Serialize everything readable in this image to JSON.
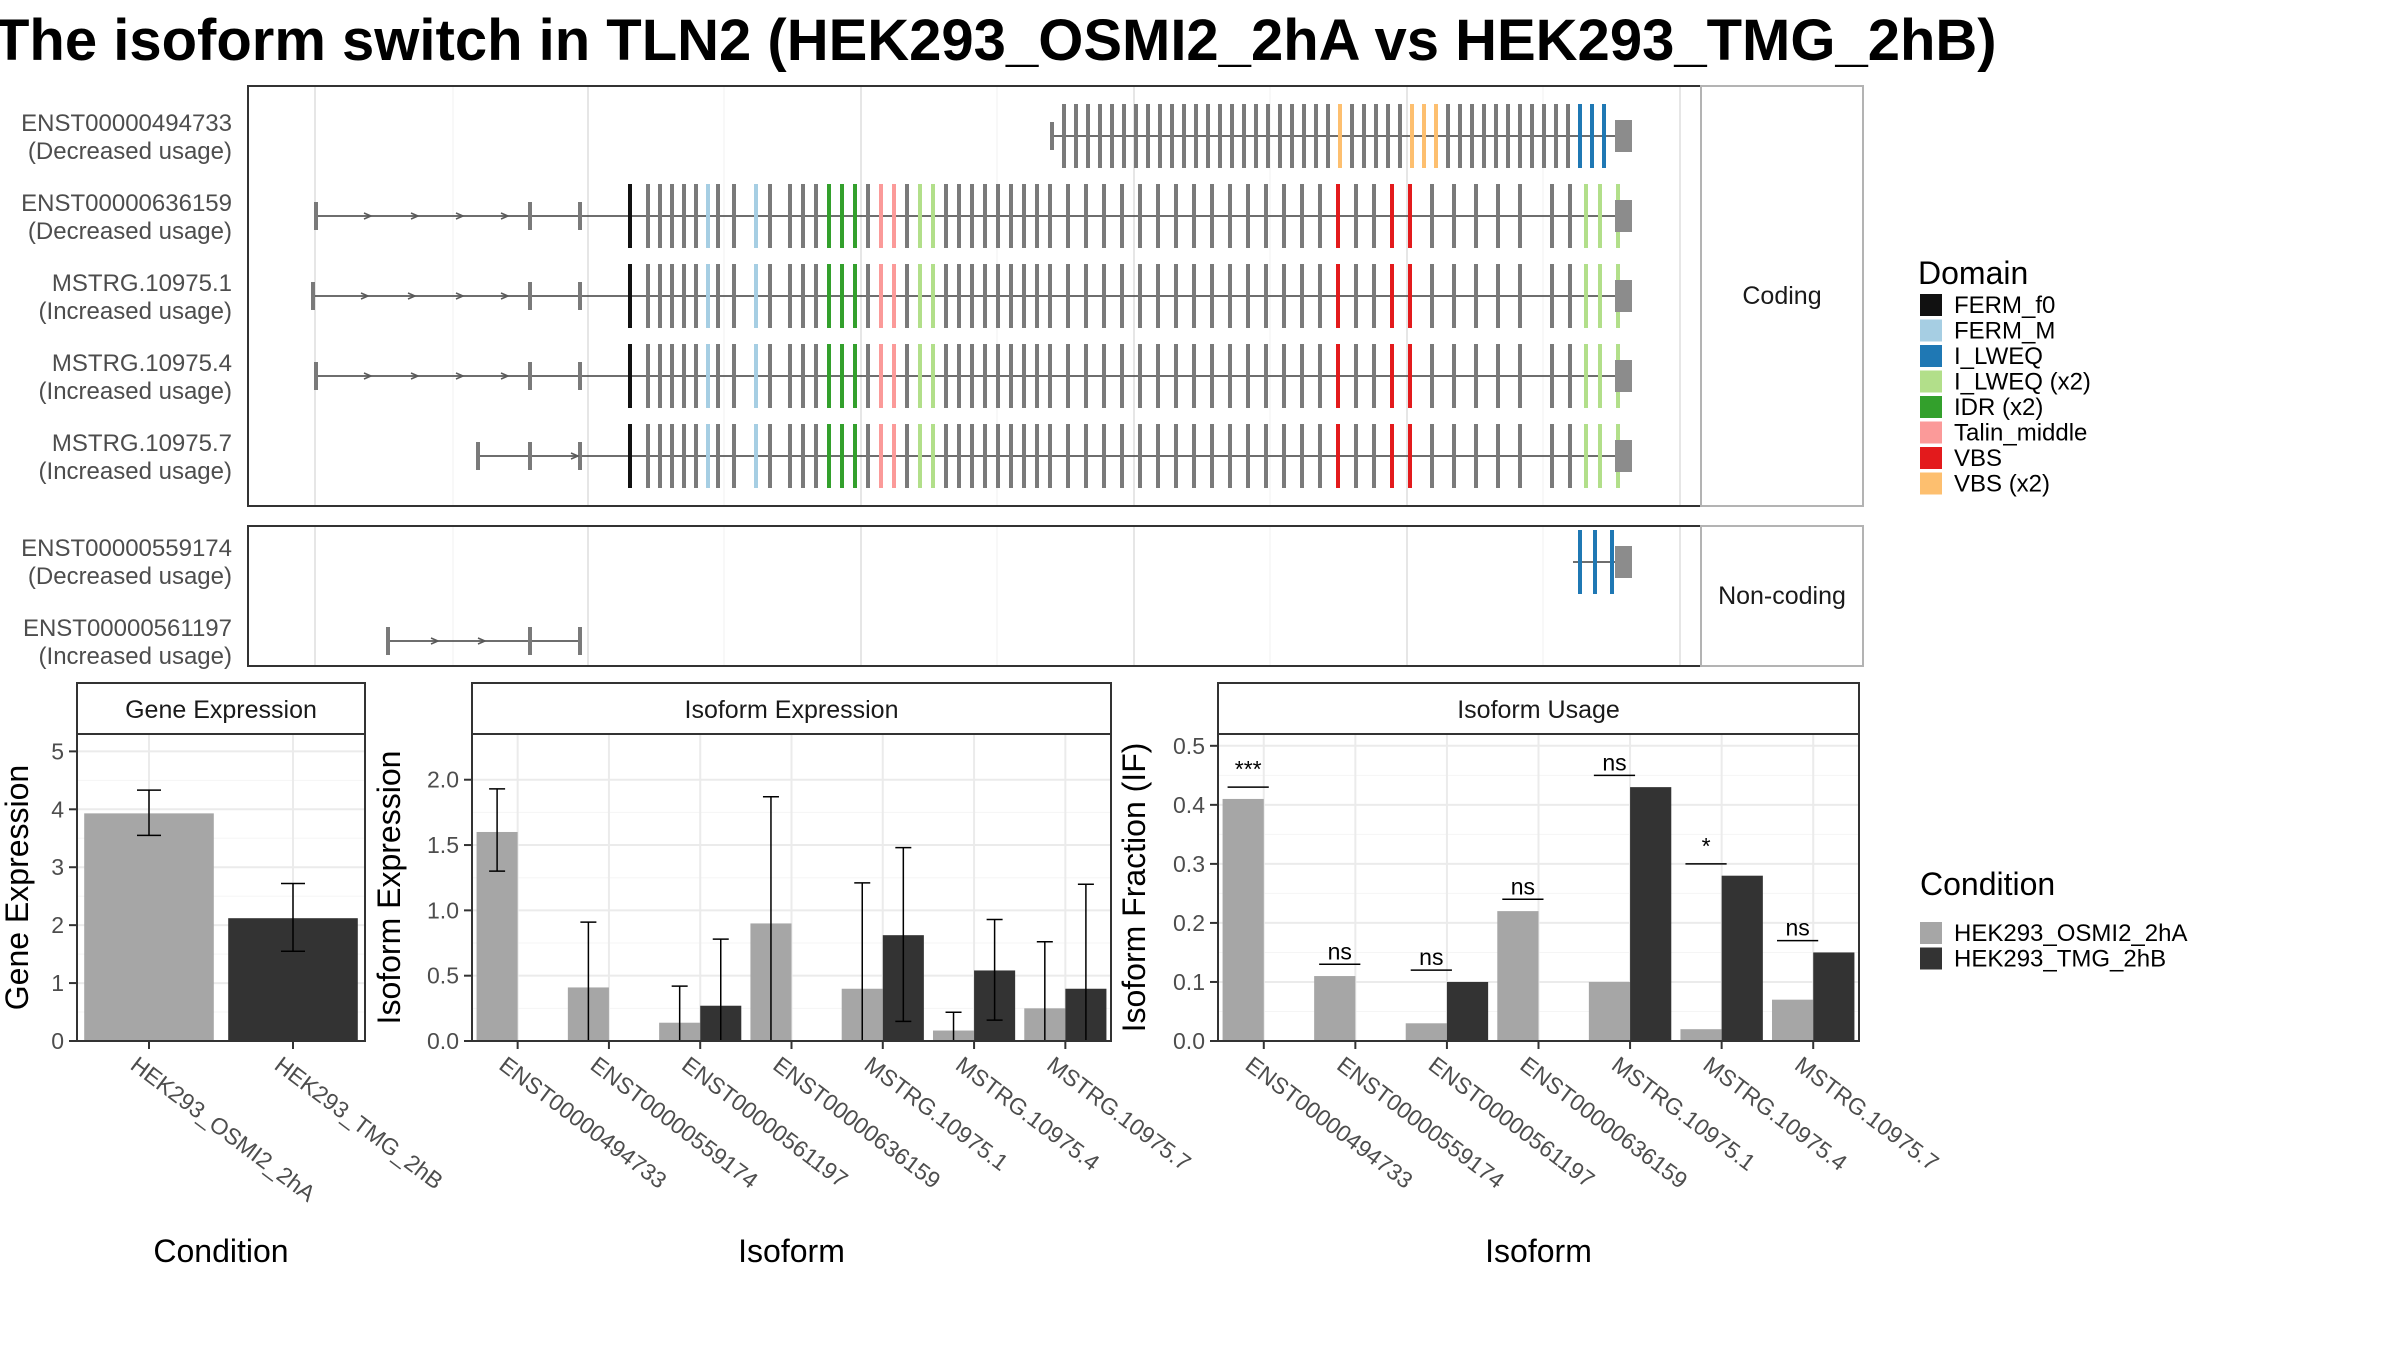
{
  "title": "The isoform switch in TLN2 (HEK293_OSMI2_2hA vs HEK293_TMG_2hB)",
  "colors": {
    "condition_a": "#a6a6a6",
    "condition_b": "#333333",
    "intron": "#595959",
    "exon_default": "#7a7a7a",
    "utr": "#8c8c8c",
    "panel_border": "#333333",
    "strip_fill": "#ffffff",
    "grid": "#ebebeb"
  },
  "domain_legend": {
    "title": "Domain",
    "items": [
      {
        "label": "FERM_f0",
        "color": "#111111"
      },
      {
        "label": "FERM_M",
        "color": "#a6cee3"
      },
      {
        "label": "I_LWEQ",
        "color": "#1f78b4"
      },
      {
        "label": "I_LWEQ (x2)",
        "color": "#b2df8a"
      },
      {
        "label": "IDR (x2)",
        "color": "#33a02c"
      },
      {
        "label": "Talin_middle",
        "color": "#fb9a99"
      },
      {
        "label": "VBS",
        "color": "#e31a1c"
      },
      {
        "label": "VBS (x2)",
        "color": "#fdbf6f"
      }
    ]
  },
  "condition_legend": {
    "title": "Condition",
    "items": [
      {
        "label": "HEK293_OSMI2_2hA",
        "color": "#a6a6a6"
      },
      {
        "label": "HEK293_TMG_2hB",
        "color": "#333333"
      }
    ]
  },
  "transcript_panels": [
    {
      "strip": "Coding",
      "transcripts": [
        {
          "id": "ENST00000494733",
          "usage": "(Decreased usage)"
        },
        {
          "id": "ENST00000636159",
          "usage": "(Decreased usage)"
        },
        {
          "id": "MSTRG.10975.1",
          "usage": "(Increased usage)"
        },
        {
          "id": "MSTRG.10975.4",
          "usage": "(Increased usage)"
        },
        {
          "id": "MSTRG.10975.7",
          "usage": "(Increased usage)"
        }
      ]
    },
    {
      "strip": "Non-coding",
      "transcripts": [
        {
          "id": "ENST00000559174",
          "usage": "(Decreased usage)"
        },
        {
          "id": "ENST00000561197",
          "usage": "(Increased usage)"
        }
      ]
    }
  ],
  "chart_data": [
    {
      "type": "bar",
      "title": "Gene Expression",
      "xlabel": "Condition",
      "ylabel": "Gene Expression",
      "ylim": [
        0,
        5.3
      ],
      "yticks": [
        "0",
        "1",
        "2",
        "3",
        "4",
        "5"
      ],
      "categories": [
        "HEK293_OSMI2_2hA",
        "HEK293_TMG_2hB"
      ],
      "values": [
        3.93,
        2.12
      ],
      "error_low": [
        3.55,
        1.55
      ],
      "error_high": [
        4.33,
        2.72
      ]
    },
    {
      "type": "bar",
      "title": "Isoform Expression",
      "xlabel": "Isoform",
      "ylabel": "Isoform Expression",
      "ylim": [
        0,
        2.35
      ],
      "yticks": [
        "0.0",
        "0.5",
        "1.0",
        "1.5",
        "2.0"
      ],
      "categories": [
        "ENST00000494733",
        "ENST00000559174",
        "ENST00000561197",
        "ENST00000636159",
        "MSTRG.10975.1",
        "MSTRG.10975.4",
        "MSTRG.10975.7"
      ],
      "series": [
        {
          "name": "HEK293_OSMI2_2hA",
          "values": [
            1.6,
            0.41,
            0.14,
            0.9,
            0.4,
            0.08,
            0.25
          ],
          "error_low": [
            1.3,
            0.0,
            0.0,
            0.0,
            0.0,
            0.0,
            0.0
          ],
          "error_high": [
            1.93,
            0.91,
            0.42,
            1.87,
            1.21,
            0.22,
            0.76
          ]
        },
        {
          "name": "HEK293_TMG_2hB",
          "values": [
            0.0,
            0.0,
            0.27,
            0.0,
            0.81,
            0.54,
            0.4
          ],
          "error_low": [
            0.0,
            0.0,
            0.0,
            0.0,
            0.15,
            0.16,
            0.0
          ],
          "error_high": [
            0.0,
            0.0,
            0.78,
            0.0,
            1.48,
            0.93,
            1.2
          ]
        }
      ]
    },
    {
      "type": "bar",
      "title": "Isoform Usage",
      "xlabel": "Isoform",
      "ylabel": "Isoform Fraction (IF)",
      "ylim": [
        0,
        0.52
      ],
      "yticks": [
        "0.0",
        "0.1",
        "0.2",
        "0.3",
        "0.4",
        "0.5"
      ],
      "categories": [
        "ENST00000494733",
        "ENST00000559174",
        "ENST00000561197",
        "ENST00000636159",
        "MSTRG.10975.1",
        "MSTRG.10975.4",
        "MSTRG.10975.7"
      ],
      "series": [
        {
          "name": "HEK293_OSMI2_2hA",
          "values": [
            0.41,
            0.11,
            0.03,
            0.22,
            0.1,
            0.02,
            0.07
          ]
        },
        {
          "name": "HEK293_TMG_2hB",
          "values": [
            0.0,
            0.0,
            0.1,
            0.0,
            0.43,
            0.28,
            0.15
          ]
        }
      ],
      "significance": [
        "***",
        "ns",
        "ns",
        "ns",
        "ns",
        "*",
        "ns"
      ],
      "significance_y": [
        0.43,
        0.13,
        0.12,
        0.24,
        0.45,
        0.3,
        0.17
      ]
    }
  ]
}
